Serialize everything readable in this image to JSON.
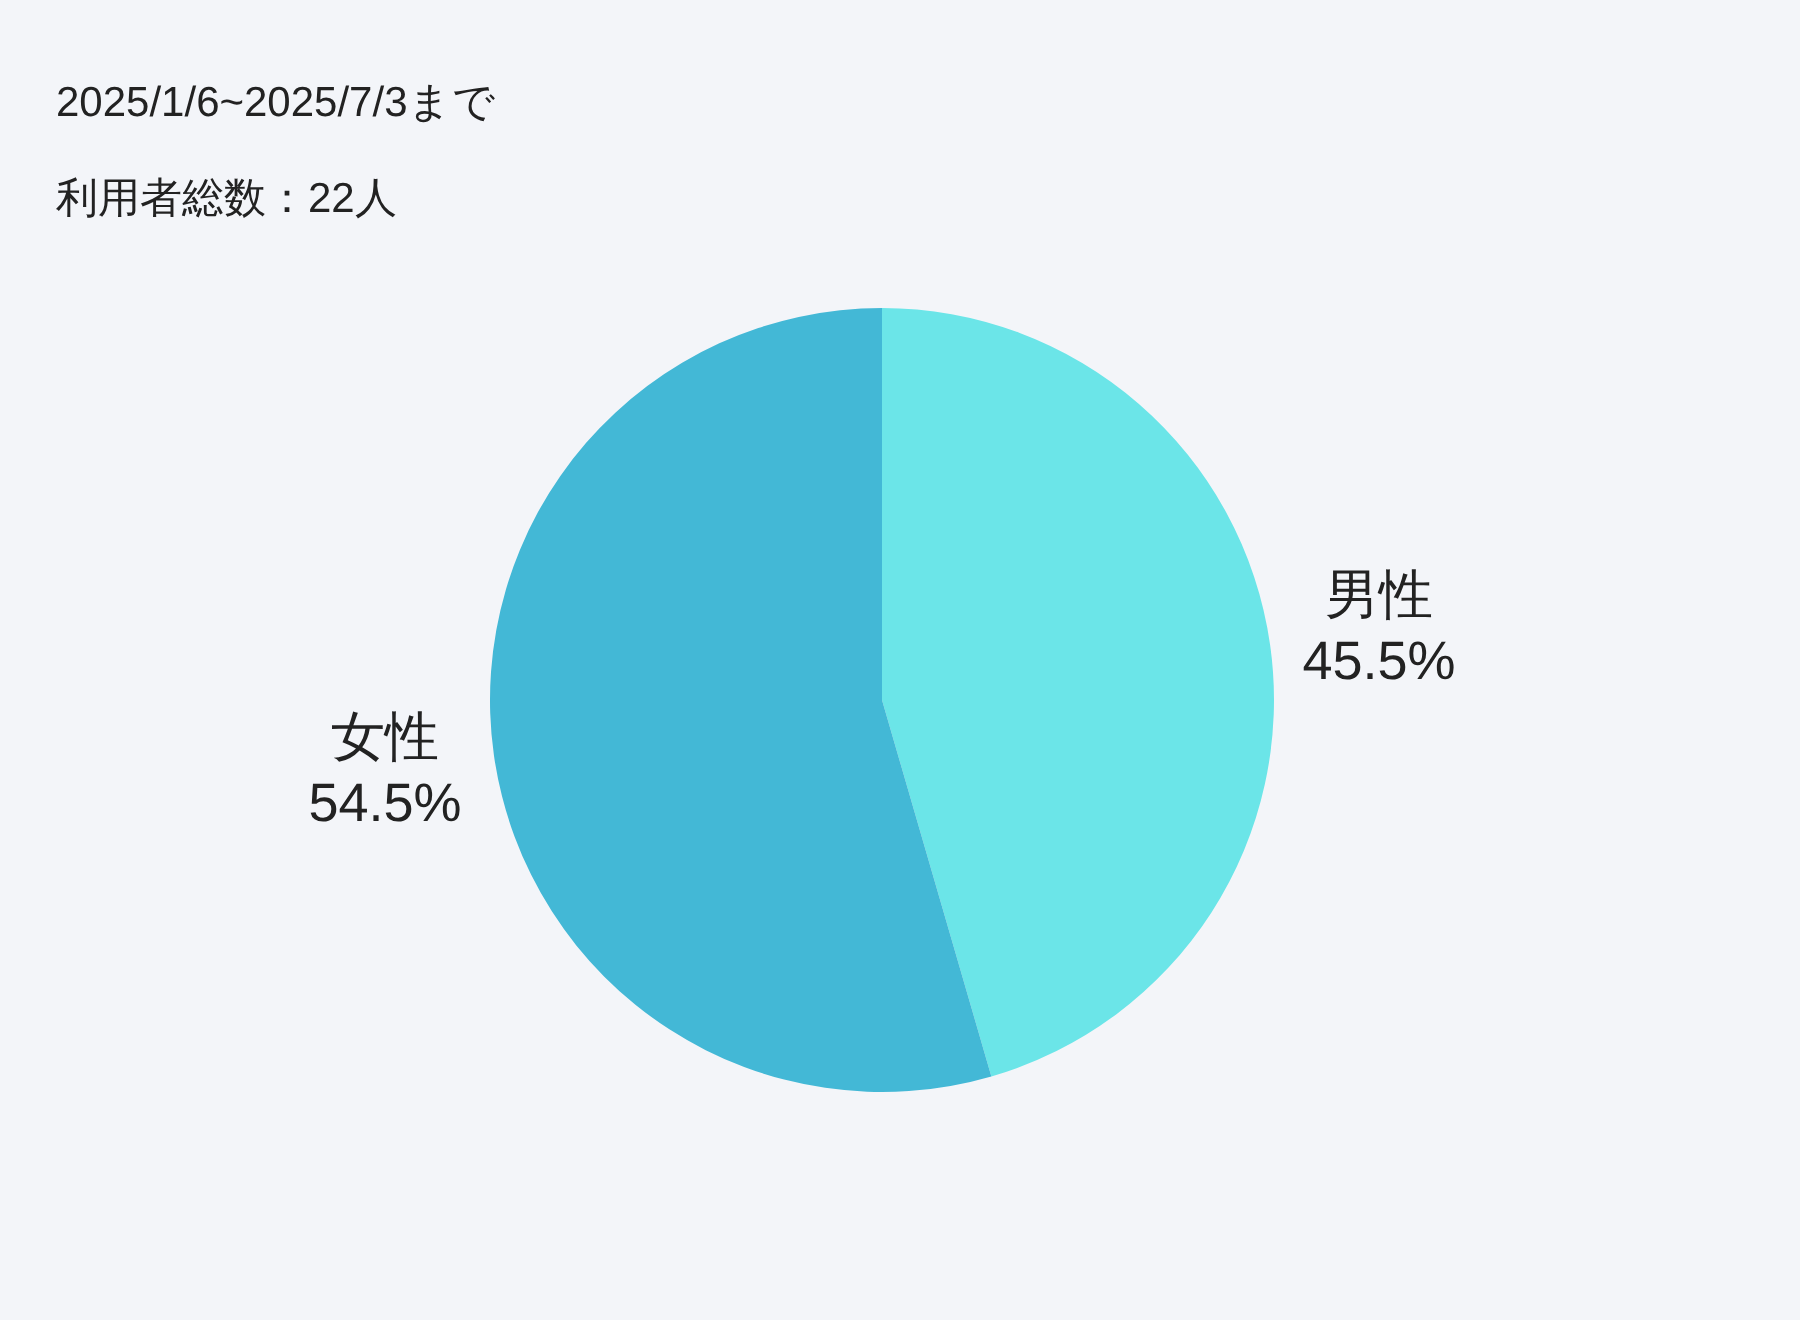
{
  "chart_data": {
    "type": "pie",
    "title": "2025/1/6~2025/7/3まで",
    "subtitle": "利用者総数：22人",
    "categories": [
      "男性",
      "女性"
    ],
    "values": [
      45.5,
      54.5
    ],
    "value_labels": [
      "45.5%",
      "54.5%"
    ],
    "colors": [
      "#6be5e8",
      "#43b8d6"
    ]
  }
}
